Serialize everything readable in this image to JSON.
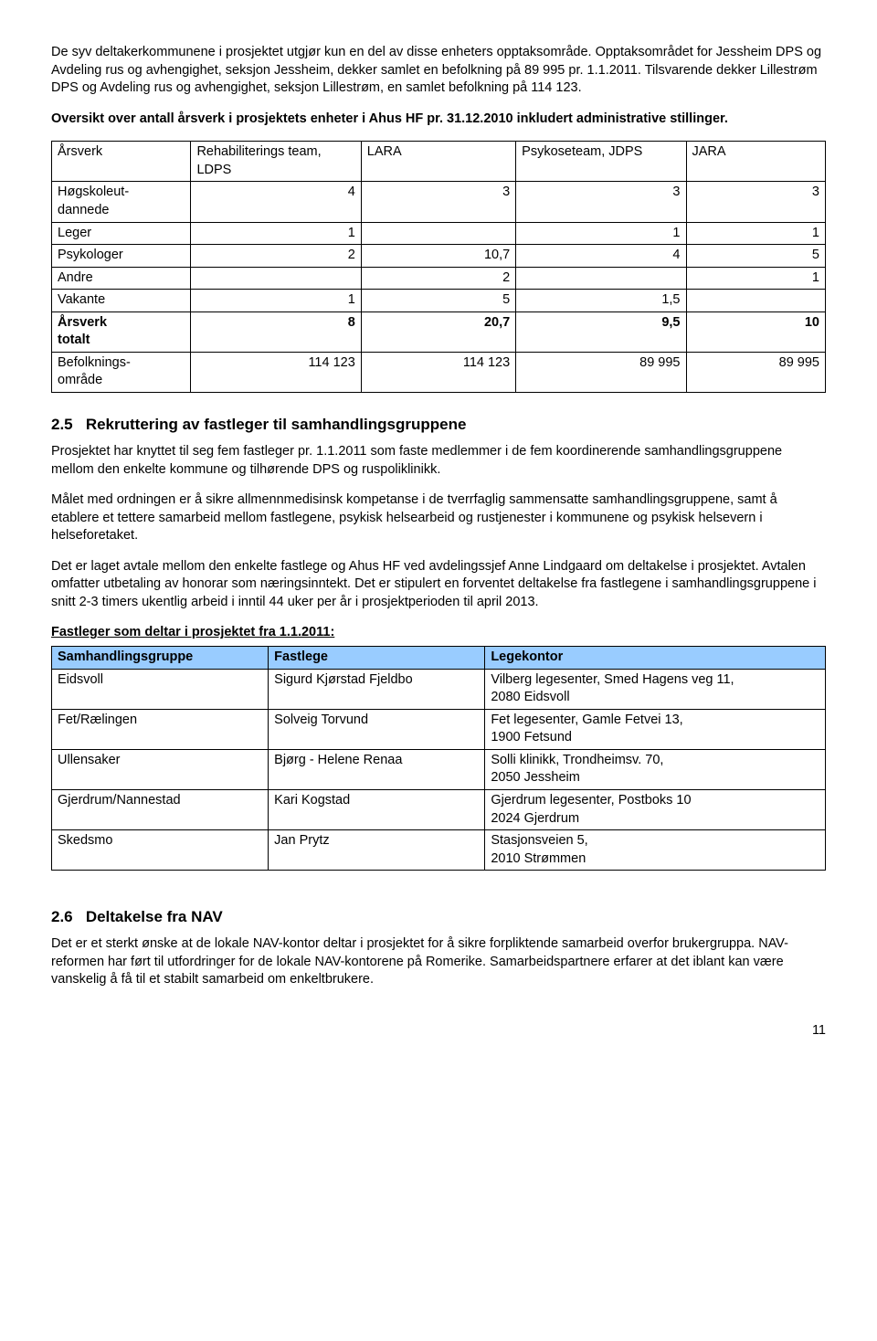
{
  "intro": {
    "p1": "De syv deltakerkommunene i prosjektet utgjør kun en del av disse enheters opptaksområde. Opptaksområdet for Jessheim DPS og Avdeling rus og avhengighet, seksjon Jessheim, dekker samlet en befolkning på 89 995 pr. 1.1.2011. Tilsvarende dekker Lillestrøm DPS og Avdeling rus og avhengighet, seksjon Lillestrøm, en samlet befolkning på 114 123.",
    "p2": "Oversikt over antall årsverk i prosjektets enheter i Ahus HF pr. 31.12.2010 inkludert administrative stillinger."
  },
  "table1": {
    "headers": [
      "Årsverk",
      "Rehabiliterings team, LDPS",
      "LARA",
      "Psykoseteam, JDPS",
      "JARA"
    ],
    "rows": [
      {
        "label": "Høgskoleut-dannede",
        "c1": "4",
        "c2": "3",
        "c3": "3",
        "c4": "3"
      },
      {
        "label": "Leger",
        "c1": "1",
        "c2": "",
        "c3": "1",
        "c4": "1"
      },
      {
        "label": "Psykologer",
        "c1": "2",
        "c2": "10,7",
        "c3": "4",
        "c4": "5"
      },
      {
        "label": "Andre",
        "c1": "",
        "c2": "2",
        "c3": "",
        "c4": "1"
      },
      {
        "label": "Vakante",
        "c1": "1",
        "c2": "5",
        "c3": "1,5",
        "c4": ""
      },
      {
        "label": "Årsverk totalt",
        "c1": "8",
        "c2": "20,7",
        "c3": "9,5",
        "c4": "10",
        "bold": true
      },
      {
        "label": "Befolknings-område",
        "c1": "114 123",
        "c2": "114 123",
        "c3": "89 995",
        "c4": "89 995"
      }
    ],
    "col_widths": [
      "18%",
      "22%",
      "20%",
      "22%",
      "18%"
    ]
  },
  "sec25": {
    "num": "2.5",
    "title": "Rekruttering av fastleger til samhandlingsgruppene",
    "p1": "Prosjektet har knyttet til seg fem fastleger pr. 1.1.2011 som faste medlemmer i de fem koordinerende samhandlingsgruppene mellom den enkelte kommune og tilhørende DPS og ruspoliklinikk.",
    "p2": "Målet med ordningen er å sikre allmennmedisinsk kompetanse i de tverrfaglig sammensatte samhandlingsgruppene, samt å etablere et tettere samarbeid mellom fastlegene, psykisk helsearbeid og rustjenester i kommunene og psykisk helsevern i helseforetaket.",
    "p3": "Det er laget avtale mellom den enkelte fastlege og Ahus HF ved avdelingssjef Anne Lindgaard om deltakelse i prosjektet. Avtalen omfatter utbetaling av honorar som næringsinntekt. Det er stipulert en forventet deltakelse fra fastlegene i samhandlingsgruppene i snitt 2-3 timers ukentlig arbeid i inntil 44 uker per år i prosjektperioden til april 2013."
  },
  "fastleger": {
    "title": "Fastleger som deltar i prosjektet fra 1.1.2011:",
    "headers": [
      "Samhandlingsgruppe",
      "Fastlege",
      "Legekontor"
    ],
    "header_bg": "#99ccff",
    "rows": [
      {
        "a": "Eidsvoll",
        "b": "Sigurd Kjørstad Fjeldbo",
        "c": "Vilberg legesenter, Smed Hagens veg 11, 2080 Eidsvoll"
      },
      {
        "a": "Fet/Rælingen",
        "b": "Solveig Torvund",
        "c": "Fet legesenter, Gamle Fetvei 13, 1900 Fetsund"
      },
      {
        "a": "Ullensaker",
        "b": "Bjørg - Helene Renaa",
        "c": "Solli klinikk, Trondheimsv. 70, 2050 Jessheim"
      },
      {
        "a": "Gjerdrum/Nannestad",
        "b": "Kari Kogstad",
        "c": "Gjerdrum legesenter, Postboks 10 2024 Gjerdrum"
      },
      {
        "a": "Skedsmo",
        "b": "Jan Prytz",
        "c": "Stasjonsveien 5, 2010 Strømmen"
      }
    ],
    "col_widths": [
      "28%",
      "28%",
      "44%"
    ]
  },
  "sec26": {
    "num": "2.6",
    "title": "Deltakelse fra NAV",
    "p1": "Det er et sterkt ønske at de lokale NAV-kontor deltar i prosjektet for å sikre forpliktende samarbeid overfor brukergruppa. NAV-reformen har ført til utfordringer for de lokale NAV-kontorene på Romerike. Samarbeidspartnere erfarer at det iblant kan være vanskelig å få til et stabilt samarbeid om enkeltbrukere."
  },
  "page_number": "11"
}
